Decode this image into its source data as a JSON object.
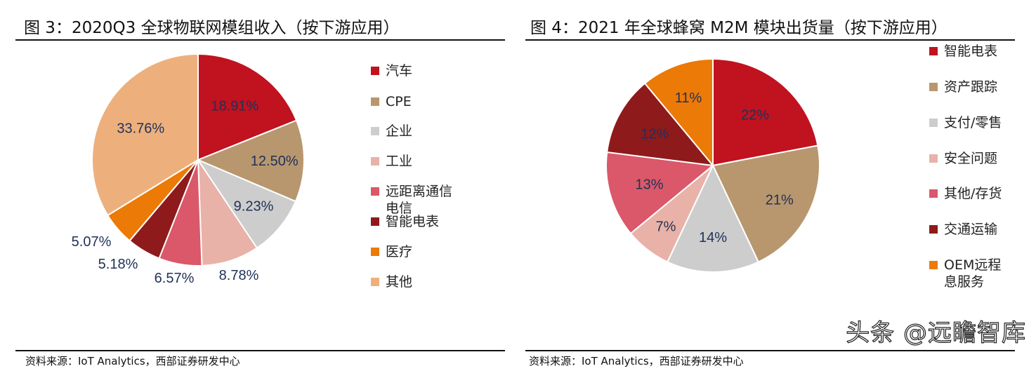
{
  "chart_data": [
    {
      "type": "pie",
      "title": "图 3：2020Q3 全球物联网模组收入（按下游应用）",
      "source": "资料来源：IoT Analytics，西部证券研发中心",
      "legend_position": "right",
      "labels": [
        "汽车",
        "CPE",
        "企业",
        "工业",
        "远距离通信电信",
        "智能电表",
        "医疗",
        "其他"
      ],
      "values": [
        18.91,
        12.5,
        9.23,
        8.78,
        6.57,
        5.18,
        5.07,
        33.76
      ],
      "data_labels": [
        "18.91%",
        "12.50%",
        "9.23%",
        "8.78%",
        "6.57%",
        "5.18%",
        "5.07%",
        "33.76%"
      ],
      "colors": [
        "#C1121F",
        "#B8976F",
        "#CDCDCD",
        "#E8B2A8",
        "#DA5869",
        "#8E1A1C",
        "#EC7A07",
        "#EDB07C"
      ]
    },
    {
      "type": "pie",
      "title": "图 4：2021 年全球蜂窝 M2M 模块出货量（按下游应用）",
      "source": "资料来源：IoT Analytics，西部证券研发中心",
      "legend_position": "right",
      "labels": [
        "智能电表",
        "资产跟踪",
        "支付/零售",
        "安全问题",
        "其他/存货",
        "交通运输",
        "OEM远程息服务"
      ],
      "values": [
        22,
        21,
        14,
        7,
        13,
        12,
        11
      ],
      "data_labels": [
        "22%",
        "21%",
        "14%",
        "7%",
        "13%",
        "12%",
        "11%"
      ],
      "colors": [
        "#C1121F",
        "#B8976F",
        "#CDCDCD",
        "#E8B2A8",
        "#DA5869",
        "#8E1A1C",
        "#EC7A07"
      ]
    }
  ],
  "watermark": "头条 @远瞻智库"
}
